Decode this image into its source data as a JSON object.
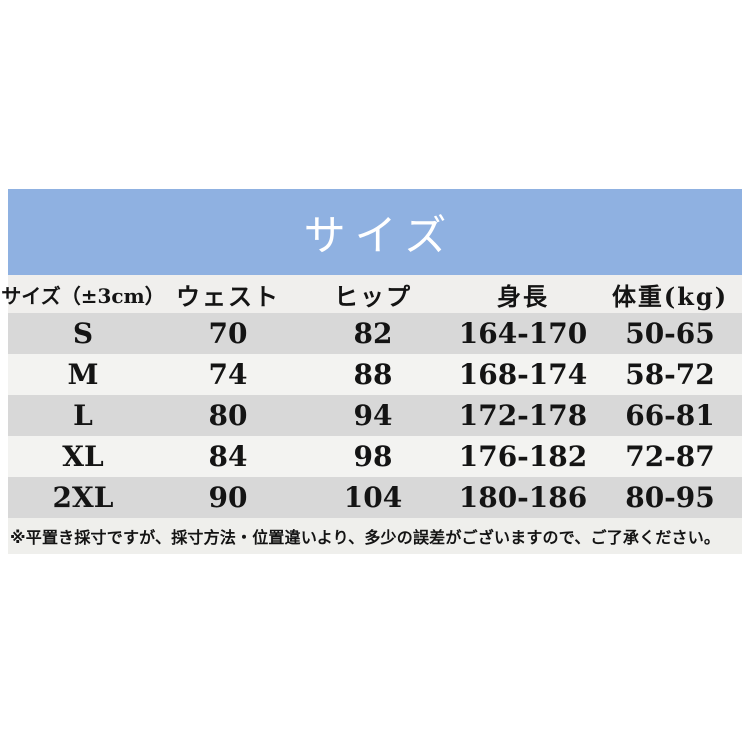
{
  "chart_data": {
    "type": "table",
    "title": "サイズ",
    "columns": [
      "サイズ（±3cm）",
      "ウェスト",
      "ヒップ",
      "身長",
      "体重(kg)"
    ],
    "rows": [
      [
        "S",
        "70",
        "82",
        "164-170",
        "50-65"
      ],
      [
        "M",
        "74",
        "88",
        "168-174",
        "58-72"
      ],
      [
        "L",
        "80",
        "94",
        "172-178",
        "66-81"
      ],
      [
        "XL",
        "84",
        "98",
        "176-182",
        "72-87"
      ],
      [
        "2XL",
        "90",
        "104",
        "180-186",
        "80-95"
      ]
    ],
    "note": "※平置き採寸ですが、採寸方法・位置違いより、多少の誤差がございますので、ご了承ください。"
  },
  "colors": {
    "accent_blue": "#8fb1e1",
    "title_text": "#ffffff",
    "header_row_bg": "#f0efed",
    "row_dark_bg": "#d8d8d8",
    "row_light_bg": "#f3f3f1",
    "note_bg": "#efefec",
    "body_text": "#141414",
    "page_bg": "#ffffff"
  }
}
